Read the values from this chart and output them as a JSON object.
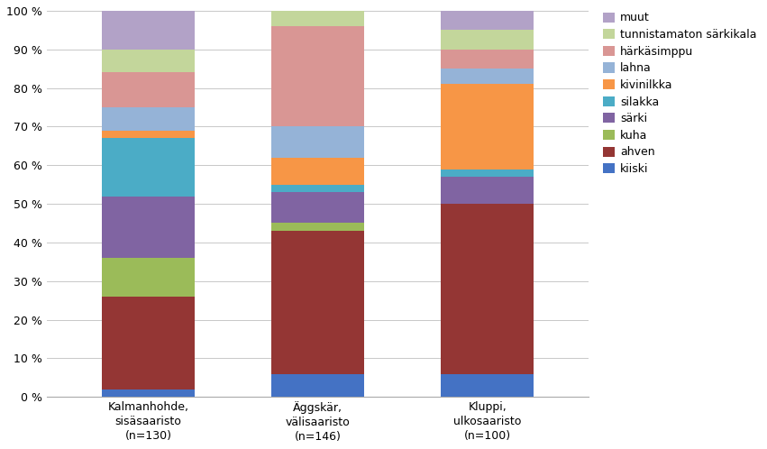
{
  "categories": [
    "Kalmanhohde,\nsisäsaaristo\n(n=130)",
    "Äggskär,\nvälisaaristo\n(n=146)",
    "Kluppi,\nulkosaaristo\n(n=100)"
  ],
  "series": [
    {
      "label": "kiiski",
      "color": "#4472C4",
      "values": [
        2,
        6,
        6
      ]
    },
    {
      "label": "ahven",
      "color": "#943634",
      "values": [
        24,
        37,
        44
      ]
    },
    {
      "label": "kuha",
      "color": "#9BBB59",
      "values": [
        10,
        2,
        0
      ]
    },
    {
      "label": "särki",
      "color": "#8064A2",
      "values": [
        16,
        8,
        7
      ]
    },
    {
      "label": "silakka",
      "color": "#4BACC6",
      "values": [
        15,
        2,
        2
      ]
    },
    {
      "label": "kivinilkka",
      "color": "#F79646",
      "values": [
        2,
        7,
        22
      ]
    },
    {
      "label": "lahna",
      "color": "#95B3D7",
      "values": [
        6,
        8,
        4
      ]
    },
    {
      "label": "härkäsimppu",
      "color": "#D99694",
      "values": [
        9,
        26,
        5
      ]
    },
    {
      "label": "tunnistamaton särkikala",
      "color": "#C3D69B",
      "values": [
        6,
        6,
        5
      ]
    },
    {
      "label": "muut",
      "color": "#B2A2C7",
      "values": [
        10,
        4,
        5
      ]
    }
  ],
  "ylim": [
    0,
    100
  ],
  "yticks": [
    0,
    10,
    20,
    30,
    40,
    50,
    60,
    70,
    80,
    90,
    100
  ],
  "ytick_labels": [
    "0 %",
    "10 %",
    "20 %",
    "30 %",
    "40 %",
    "50 %",
    "60 %",
    "70 %",
    "80 %",
    "90 %",
    "100 %"
  ],
  "background_color": "#FFFFFF",
  "bar_width": 0.55,
  "figure_facecolor": "#FFFFFF",
  "figsize": [
    8.51,
    4.98
  ],
  "dpi": 100
}
